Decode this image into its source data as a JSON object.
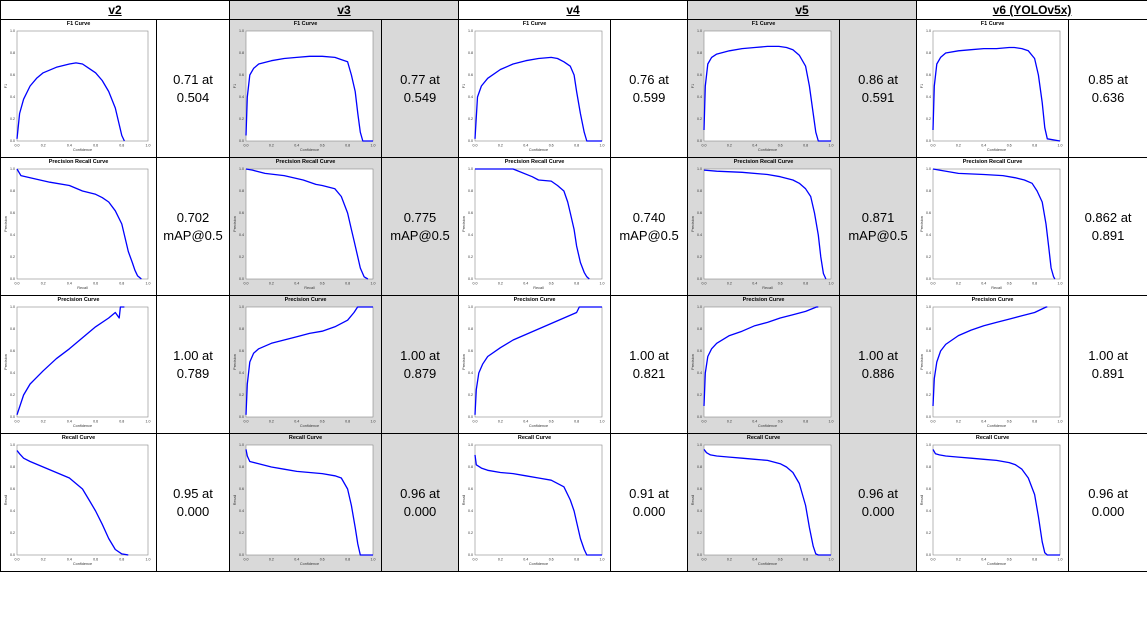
{
  "columns": [
    {
      "id": "v2",
      "label": "v2",
      "shaded": false
    },
    {
      "id": "v3",
      "label": "v3",
      "shaded": true
    },
    {
      "id": "v4",
      "label": "v4",
      "shaded": false
    },
    {
      "id": "v5",
      "label": "v5",
      "shaded": true
    },
    {
      "id": "v6",
      "label": "v6 (YOLOv5x)",
      "shaded": false
    }
  ],
  "rows": [
    {
      "id": "f1",
      "title": "F1 Curve",
      "xlabel": "Confidence",
      "ylabel": "F1",
      "values": [
        [
          "0.71 at",
          "0.504"
        ],
        [
          "0.77 at",
          "0.549"
        ],
        [
          "0.76 at",
          "0.599"
        ],
        [
          "0.86 at",
          "0.591"
        ],
        [
          "0.85 at",
          "0.636"
        ]
      ]
    },
    {
      "id": "pr",
      "title": "Precision Recall Curve",
      "xlabel": "Recall",
      "ylabel": "Precision",
      "values": [
        [
          "0.702",
          "mAP@0.5"
        ],
        [
          "0.775",
          "mAP@0.5"
        ],
        [
          "0.740",
          "mAP@0.5"
        ],
        [
          "0.871",
          "mAP@0.5"
        ],
        [
          "0.862 at",
          "0.891"
        ]
      ]
    },
    {
      "id": "p",
      "title": "Precision Curve",
      "xlabel": "Confidence",
      "ylabel": "Precision",
      "values": [
        [
          "1.00 at",
          "0.789"
        ],
        [
          "1.00 at",
          "0.879"
        ],
        [
          "1.00 at",
          "0.821"
        ],
        [
          "1.00 at",
          "0.886"
        ],
        [
          "1.00 at",
          "0.891"
        ]
      ]
    },
    {
      "id": "r",
      "title": "Recall Curve",
      "xlabel": "Confidence",
      "ylabel": "Recall",
      "values": [
        [
          "0.95 at",
          "0.000"
        ],
        [
          "0.96 at",
          "0.000"
        ],
        [
          "0.91 at",
          "0.000"
        ],
        [
          "0.96 at",
          "0.000"
        ],
        [
          "0.96 at",
          "0.000"
        ]
      ]
    }
  ],
  "chart_data": [
    {
      "type": "line",
      "id": "f1-v2",
      "title": "F1 Curve",
      "xlabel": "Confidence",
      "ylabel": "F1",
      "xlim": [
        0,
        1
      ],
      "ylim": [
        0,
        1
      ],
      "color": "#0000ff",
      "x": [
        0,
        0.02,
        0.05,
        0.1,
        0.15,
        0.2,
        0.3,
        0.4,
        0.45,
        0.5,
        0.55,
        0.6,
        0.65,
        0.7,
        0.75,
        0.78,
        0.8,
        0.82
      ],
      "y": [
        0.02,
        0.25,
        0.38,
        0.5,
        0.57,
        0.62,
        0.67,
        0.7,
        0.71,
        0.7,
        0.66,
        0.62,
        0.55,
        0.45,
        0.3,
        0.15,
        0.05,
        0
      ]
    },
    {
      "type": "line",
      "id": "f1-v3",
      "title": "F1 Curve",
      "xlabel": "Confidence",
      "ylabel": "F1",
      "xlim": [
        0,
        1
      ],
      "ylim": [
        0,
        1
      ],
      "color": "#0000ff",
      "x": [
        0,
        0.01,
        0.03,
        0.06,
        0.1,
        0.2,
        0.3,
        0.4,
        0.5,
        0.55,
        0.6,
        0.7,
        0.75,
        0.8,
        0.83,
        0.86,
        0.88,
        0.9,
        0.92,
        1.0
      ],
      "y": [
        0.05,
        0.4,
        0.6,
        0.66,
        0.7,
        0.73,
        0.75,
        0.76,
        0.77,
        0.77,
        0.77,
        0.76,
        0.74,
        0.72,
        0.6,
        0.45,
        0.25,
        0.08,
        0,
        0
      ]
    },
    {
      "type": "line",
      "id": "f1-v4",
      "title": "F1 Curve",
      "xlabel": "Confidence",
      "ylabel": "F1",
      "xlim": [
        0,
        1
      ],
      "ylim": [
        0,
        1
      ],
      "color": "#0000ff",
      "x": [
        0,
        0.02,
        0.05,
        0.1,
        0.2,
        0.3,
        0.4,
        0.5,
        0.6,
        0.65,
        0.7,
        0.75,
        0.78,
        0.8,
        0.83,
        0.86,
        0.88,
        0.9,
        1.0
      ],
      "y": [
        0.02,
        0.4,
        0.5,
        0.57,
        0.65,
        0.7,
        0.73,
        0.75,
        0.76,
        0.75,
        0.72,
        0.68,
        0.6,
        0.45,
        0.25,
        0.08,
        0,
        0,
        0
      ]
    },
    {
      "type": "line",
      "id": "f1-v5",
      "title": "F1 Curve",
      "xlabel": "Confidence",
      "ylabel": "F1",
      "xlim": [
        0,
        1
      ],
      "ylim": [
        0,
        1
      ],
      "color": "#0000ff",
      "x": [
        0,
        0.01,
        0.03,
        0.06,
        0.1,
        0.2,
        0.3,
        0.4,
        0.5,
        0.59,
        0.65,
        0.7,
        0.75,
        0.8,
        0.83,
        0.86,
        0.88,
        0.9,
        1.0
      ],
      "y": [
        0.1,
        0.5,
        0.7,
        0.76,
        0.79,
        0.82,
        0.84,
        0.85,
        0.86,
        0.86,
        0.85,
        0.83,
        0.78,
        0.68,
        0.5,
        0.25,
        0.08,
        0,
        0
      ]
    },
    {
      "type": "line",
      "id": "f1-v6",
      "title": "F1 Curve",
      "xlabel": "Confidence",
      "ylabel": "F1",
      "xlim": [
        0,
        1
      ],
      "ylim": [
        0,
        1
      ],
      "color": "#0000ff",
      "x": [
        0,
        0.01,
        0.03,
        0.06,
        0.1,
        0.2,
        0.3,
        0.4,
        0.5,
        0.6,
        0.64,
        0.7,
        0.75,
        0.8,
        0.83,
        0.86,
        0.88,
        0.9,
        1.0
      ],
      "y": [
        0.1,
        0.5,
        0.7,
        0.76,
        0.8,
        0.82,
        0.83,
        0.84,
        0.84,
        0.85,
        0.85,
        0.84,
        0.82,
        0.75,
        0.6,
        0.35,
        0.12,
        0.02,
        0
      ]
    },
    {
      "type": "line",
      "id": "pr-v2",
      "title": "Precision Recall Curve",
      "xlabel": "Recall",
      "ylabel": "Precision",
      "xlim": [
        0,
        1
      ],
      "ylim": [
        0,
        1
      ],
      "color": "#0000ff",
      "x": [
        0,
        0.03,
        0.1,
        0.25,
        0.4,
        0.5,
        0.6,
        0.65,
        0.7,
        0.75,
        0.8,
        0.82,
        0.85,
        0.88,
        0.9,
        0.92,
        0.95
      ],
      "y": [
        1.0,
        0.94,
        0.92,
        0.88,
        0.85,
        0.8,
        0.77,
        0.74,
        0.7,
        0.62,
        0.5,
        0.4,
        0.25,
        0.15,
        0.08,
        0.03,
        0
      ]
    },
    {
      "type": "line",
      "id": "pr-v3",
      "title": "Precision Recall Curve",
      "xlabel": "Recall",
      "ylabel": "Precision",
      "xlim": [
        0,
        1
      ],
      "ylim": [
        0,
        1
      ],
      "color": "#0000ff",
      "x": [
        0,
        0.05,
        0.15,
        0.3,
        0.45,
        0.55,
        0.6,
        0.7,
        0.75,
        0.8,
        0.83,
        0.85,
        0.88,
        0.9,
        0.93,
        0.96
      ],
      "y": [
        1.0,
        0.99,
        0.96,
        0.94,
        0.9,
        0.86,
        0.85,
        0.82,
        0.75,
        0.6,
        0.45,
        0.35,
        0.2,
        0.1,
        0.02,
        0
      ]
    },
    {
      "type": "line",
      "id": "pr-v4",
      "title": "Precision Recall Curve",
      "xlabel": "Recall",
      "ylabel": "Precision",
      "xlim": [
        0,
        1
      ],
      "ylim": [
        0,
        1
      ],
      "color": "#0000ff",
      "x": [
        0,
        0.1,
        0.3,
        0.45,
        0.5,
        0.6,
        0.65,
        0.7,
        0.73,
        0.75,
        0.78,
        0.8,
        0.83,
        0.86,
        0.88,
        0.9
      ],
      "y": [
        1.0,
        1.0,
        1.0,
        0.93,
        0.9,
        0.89,
        0.85,
        0.8,
        0.7,
        0.6,
        0.45,
        0.3,
        0.15,
        0.06,
        0.02,
        0
      ]
    },
    {
      "type": "line",
      "id": "pr-v5",
      "title": "Precision Recall Curve",
      "xlabel": "Recall",
      "ylabel": "Precision",
      "xlim": [
        0,
        1
      ],
      "ylim": [
        0,
        1
      ],
      "color": "#0000ff",
      "x": [
        0,
        0.1,
        0.3,
        0.5,
        0.6,
        0.7,
        0.75,
        0.8,
        0.84,
        0.87,
        0.9,
        0.92,
        0.94,
        0.96
      ],
      "y": [
        0.99,
        0.98,
        0.97,
        0.95,
        0.93,
        0.9,
        0.87,
        0.82,
        0.75,
        0.6,
        0.4,
        0.2,
        0.05,
        0
      ]
    },
    {
      "type": "line",
      "id": "pr-v6",
      "title": "Precision Recall Curve",
      "xlabel": "Recall",
      "ylabel": "Precision",
      "xlim": [
        0,
        1
      ],
      "ylim": [
        0,
        1
      ],
      "color": "#0000ff",
      "x": [
        0,
        0.05,
        0.2,
        0.4,
        0.55,
        0.65,
        0.72,
        0.78,
        0.82,
        0.86,
        0.89,
        0.91,
        0.93,
        0.95,
        0.96
      ],
      "y": [
        1.0,
        0.99,
        0.96,
        0.95,
        0.94,
        0.92,
        0.9,
        0.87,
        0.8,
        0.7,
        0.5,
        0.3,
        0.1,
        0.02,
        0
      ]
    },
    {
      "type": "line",
      "id": "p-v2",
      "title": "Precision Curve",
      "xlabel": "Confidence",
      "ylabel": "Precision",
      "xlim": [
        0,
        1
      ],
      "ylim": [
        0,
        1
      ],
      "color": "#0000ff",
      "x": [
        0,
        0.05,
        0.1,
        0.2,
        0.3,
        0.4,
        0.5,
        0.6,
        0.7,
        0.75,
        0.78,
        0.789,
        0.8,
        0.82
      ],
      "y": [
        0.02,
        0.2,
        0.3,
        0.42,
        0.53,
        0.62,
        0.72,
        0.82,
        0.9,
        0.95,
        0.9,
        1.0,
        1.0,
        1.0
      ]
    },
    {
      "type": "line",
      "id": "p-v3",
      "title": "Precision Curve",
      "xlabel": "Confidence",
      "ylabel": "Precision",
      "xlim": [
        0,
        1
      ],
      "ylim": [
        0,
        1
      ],
      "color": "#0000ff",
      "x": [
        0,
        0.01,
        0.03,
        0.06,
        0.1,
        0.2,
        0.3,
        0.4,
        0.5,
        0.6,
        0.7,
        0.8,
        0.85,
        0.879,
        0.9,
        1.0
      ],
      "y": [
        0.02,
        0.3,
        0.5,
        0.58,
        0.62,
        0.67,
        0.7,
        0.73,
        0.76,
        0.78,
        0.82,
        0.88,
        0.95,
        1.0,
        1.0,
        1.0
      ]
    },
    {
      "type": "line",
      "id": "p-v4",
      "title": "Precision Curve",
      "xlabel": "Confidence",
      "ylabel": "Precision",
      "xlim": [
        0,
        1
      ],
      "ylim": [
        0,
        1
      ],
      "color": "#0000ff",
      "x": [
        0,
        0.01,
        0.03,
        0.06,
        0.1,
        0.2,
        0.3,
        0.4,
        0.5,
        0.6,
        0.7,
        0.8,
        0.821,
        0.9,
        1.0
      ],
      "y": [
        0.02,
        0.25,
        0.4,
        0.48,
        0.55,
        0.63,
        0.7,
        0.75,
        0.8,
        0.85,
        0.9,
        0.95,
        1.0,
        1.0,
        1.0
      ]
    },
    {
      "type": "line",
      "id": "p-v5",
      "title": "Precision Curve",
      "xlabel": "Confidence",
      "ylabel": "Precision",
      "xlim": [
        0,
        1
      ],
      "ylim": [
        0,
        1
      ],
      "color": "#0000ff",
      "x": [
        0,
        0.01,
        0.03,
        0.06,
        0.1,
        0.2,
        0.3,
        0.4,
        0.5,
        0.6,
        0.7,
        0.8,
        0.886,
        0.9
      ],
      "y": [
        0.1,
        0.4,
        0.55,
        0.62,
        0.67,
        0.74,
        0.78,
        0.83,
        0.86,
        0.9,
        0.93,
        0.96,
        1.0,
        1.0
      ]
    },
    {
      "type": "line",
      "id": "p-v6",
      "title": "Precision Curve",
      "xlabel": "Confidence",
      "ylabel": "Precision",
      "xlim": [
        0,
        1
      ],
      "ylim": [
        0,
        1
      ],
      "color": "#0000ff",
      "x": [
        0,
        0.01,
        0.03,
        0.06,
        0.1,
        0.2,
        0.3,
        0.4,
        0.5,
        0.6,
        0.7,
        0.8,
        0.891,
        0.9
      ],
      "y": [
        0.1,
        0.35,
        0.5,
        0.6,
        0.66,
        0.74,
        0.79,
        0.83,
        0.86,
        0.89,
        0.92,
        0.95,
        1.0,
        1.0
      ]
    },
    {
      "type": "line",
      "id": "r-v2",
      "title": "Recall Curve",
      "xlabel": "Confidence",
      "ylabel": "Recall",
      "xlim": [
        0,
        1
      ],
      "ylim": [
        0,
        1
      ],
      "color": "#0000ff",
      "x": [
        0,
        0.02,
        0.05,
        0.1,
        0.2,
        0.3,
        0.4,
        0.5,
        0.55,
        0.6,
        0.65,
        0.7,
        0.75,
        0.8,
        0.85
      ],
      "y": [
        0.95,
        0.92,
        0.88,
        0.85,
        0.8,
        0.75,
        0.7,
        0.6,
        0.5,
        0.4,
        0.28,
        0.15,
        0.05,
        0.01,
        0
      ]
    },
    {
      "type": "line",
      "id": "r-v3",
      "title": "Recall Curve",
      "xlabel": "Confidence",
      "ylabel": "Recall",
      "xlim": [
        0,
        1
      ],
      "ylim": [
        0,
        1
      ],
      "color": "#0000ff",
      "x": [
        0,
        0.01,
        0.03,
        0.1,
        0.2,
        0.3,
        0.4,
        0.5,
        0.6,
        0.7,
        0.75,
        0.8,
        0.83,
        0.86,
        0.88,
        0.9,
        1.0
      ],
      "y": [
        0.96,
        0.9,
        0.85,
        0.83,
        0.8,
        0.78,
        0.76,
        0.75,
        0.74,
        0.72,
        0.7,
        0.6,
        0.45,
        0.25,
        0.1,
        0,
        0
      ]
    },
    {
      "type": "line",
      "id": "r-v4",
      "title": "Recall Curve",
      "xlabel": "Confidence",
      "ylabel": "Recall",
      "xlim": [
        0,
        1
      ],
      "ylim": [
        0,
        1
      ],
      "color": "#0000ff",
      "x": [
        0,
        0.01,
        0.05,
        0.1,
        0.2,
        0.3,
        0.4,
        0.5,
        0.6,
        0.7,
        0.75,
        0.78,
        0.8,
        0.83,
        0.86,
        0.88,
        1.0
      ],
      "y": [
        0.91,
        0.82,
        0.79,
        0.77,
        0.75,
        0.74,
        0.72,
        0.7,
        0.68,
        0.62,
        0.5,
        0.4,
        0.3,
        0.15,
        0.05,
        0,
        0
      ]
    },
    {
      "type": "line",
      "id": "r-v5",
      "title": "Recall Curve",
      "xlabel": "Confidence",
      "ylabel": "Recall",
      "xlim": [
        0,
        1
      ],
      "ylim": [
        0,
        1
      ],
      "color": "#0000ff",
      "x": [
        0,
        0.02,
        0.05,
        0.1,
        0.2,
        0.3,
        0.4,
        0.5,
        0.6,
        0.65,
        0.7,
        0.75,
        0.8,
        0.83,
        0.86,
        0.88,
        0.9,
        1.0
      ],
      "y": [
        0.96,
        0.93,
        0.91,
        0.9,
        0.89,
        0.88,
        0.87,
        0.86,
        0.83,
        0.8,
        0.75,
        0.65,
        0.45,
        0.25,
        0.08,
        0.01,
        0,
        0
      ]
    },
    {
      "type": "line",
      "id": "r-v6",
      "title": "Recall Curve",
      "xlabel": "Confidence",
      "ylabel": "Recall",
      "xlim": [
        0,
        1
      ],
      "ylim": [
        0,
        1
      ],
      "color": "#0000ff",
      "x": [
        0,
        0.02,
        0.05,
        0.1,
        0.2,
        0.3,
        0.4,
        0.5,
        0.6,
        0.65,
        0.7,
        0.75,
        0.8,
        0.83,
        0.86,
        0.88,
        0.9,
        1.0
      ],
      "y": [
        0.96,
        0.92,
        0.91,
        0.9,
        0.89,
        0.88,
        0.87,
        0.86,
        0.84,
        0.82,
        0.78,
        0.7,
        0.55,
        0.35,
        0.12,
        0.02,
        0,
        0
      ]
    }
  ]
}
